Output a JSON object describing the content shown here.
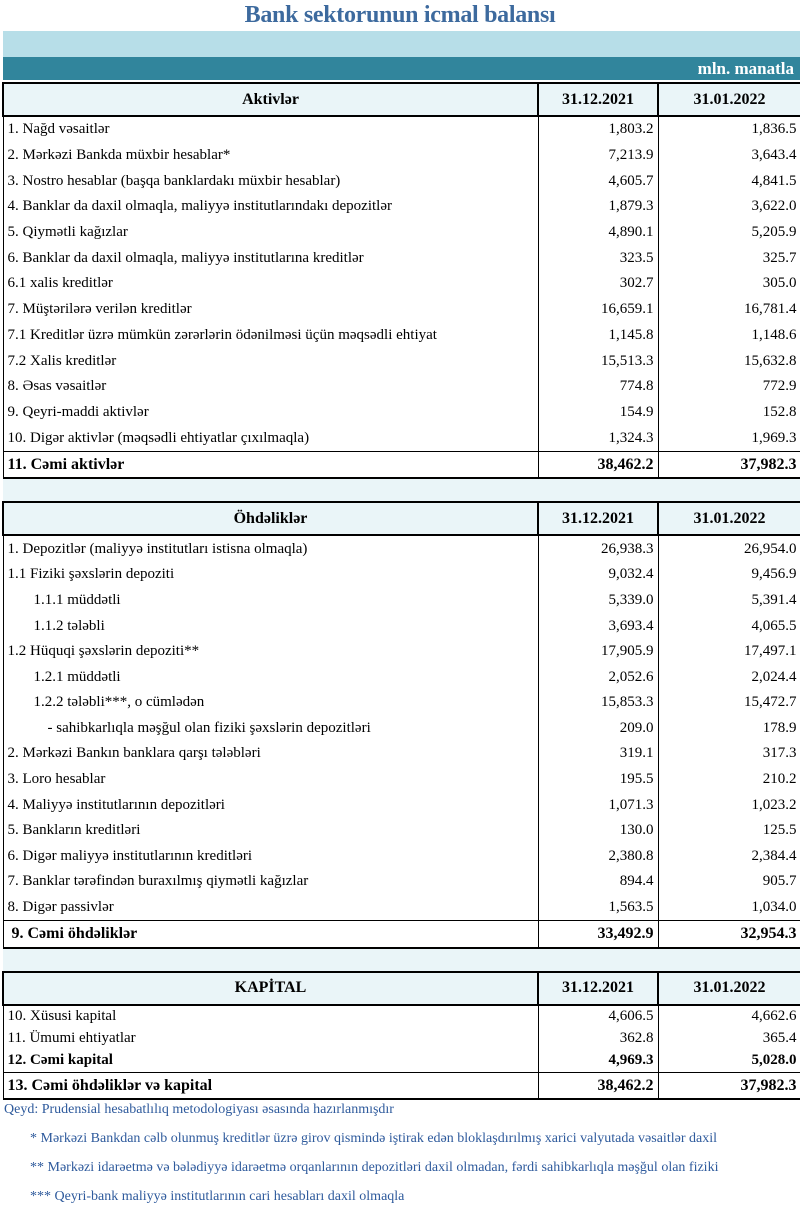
{
  "title": "Bank sektorunun icmal balansı",
  "unit": "mln. manatla",
  "sections": [
    {
      "header": "Aktivlər",
      "cols": [
        "31.12.2021",
        "31.01.2022"
      ],
      "rows": [
        [
          "1. Nağd vəsaitlər",
          "1,803.2",
          "1,836.5"
        ],
        [
          "2. Mərkəzi Bankda müxbir hesablar*",
          "7,213.9",
          "3,643.4"
        ],
        [
          "3. Nostro hesablar (başqa banklardakı müxbir hesablar)",
          "4,605.7",
          "4,841.5"
        ],
        [
          "4. Banklar da daxil olmaqla, maliyyə institutlarındakı depozitlər",
          "1,879.3",
          "3,622.0"
        ],
        [
          "5. Qiymətli kağızlar",
          "4,890.1",
          "5,205.9"
        ],
        [
          "6. Banklar da daxil olmaqla, maliyyə institutlarına kreditlər",
          "323.5",
          "325.7"
        ],
        [
          "6.1 xalis kreditlər",
          "302.7",
          "305.0"
        ],
        [
          "7. Müştərilərə verilən kreditlər",
          "16,659.1",
          "16,781.4"
        ],
        [
          "7.1 Kreditlər üzrə mümkün zərərlərin ödənilməsi üçün məqsədli ehtiyat",
          "1,145.8",
          "1,148.6"
        ],
        [
          "7.2 Xalis kreditlər",
          "15,513.3",
          "15,632.8"
        ],
        [
          "8.  Əsas vəsaitlər",
          "774.8",
          "772.9"
        ],
        [
          "9. Qeyri-maddi aktivlər",
          "154.9",
          "152.8"
        ],
        [
          "10. Digər aktivlər (məqsədli ehtiyatlar çıxılmaqla)",
          "1,324.3",
          "1,969.3"
        ]
      ],
      "total": [
        "11. Cəmi aktivlər",
        "38,462.2",
        "37,982.3"
      ]
    },
    {
      "header": "Öhdəliklər",
      "cols": [
        "31.12.2021",
        "31.01.2022"
      ],
      "rows": [
        [
          "1. Depozitlər (maliyyə institutları istisna olmaqla)",
          "26,938.3",
          "26,954.0"
        ],
        [
          "1.1 Fiziki şəxslərin depoziti",
          "9,032.4",
          "9,456.9"
        ],
        [
          "1.1.1 müddətli",
          "5,339.0",
          "5,391.4"
        ],
        [
          "1.1.2 tələbli",
          "3,693.4",
          "4,065.5"
        ],
        [
          "1.2 Hüquqi şəxslərin depoziti**",
          "17,905.9",
          "17,497.1"
        ],
        [
          "1.2.1 müddətli",
          "2,052.6",
          "2,024.4"
        ],
        [
          "1.2.2 tələbli***, o cümlədən",
          "15,853.3",
          "15,472.7"
        ],
        [
          "- sahibkarlıqla məşğul olan fiziki şəxslərin depozitləri",
          "209.0",
          "178.9"
        ],
        [
          "2. Mərkəzi Bankın banklara qarşı tələbləri",
          "319.1",
          "317.3"
        ],
        [
          "3. Loro hesablar",
          "195.5",
          "210.2"
        ],
        [
          "4. Maliyyə institutlarının  depozitləri",
          "1,071.3",
          "1,023.2"
        ],
        [
          "5. Bankların kreditləri",
          "130.0",
          "125.5"
        ],
        [
          "6. Digər maliyyə institutlarının kreditləri",
          "2,380.8",
          "2,384.4"
        ],
        [
          "7. Banklar tərəfindən buraxılmış qiymətli kağızlar",
          "894.4",
          "905.7"
        ],
        [
          "8. Digər passivlər",
          "1,563.5",
          "1,034.0"
        ]
      ],
      "total": [
        "9. Cəmi öhdəliklər",
        "33,492.9",
        "32,954.3"
      ]
    },
    {
      "header": "KAPİTAL",
      "cols": [
        "31.12.2021",
        "31.01.2022"
      ],
      "rows": [
        [
          "10. Xüsusi kapital",
          "4,606.5",
          "4,662.6"
        ],
        [
          "11. Ümumi ehtiyatlar",
          "362.8",
          "365.4"
        ],
        [
          "12. Cəmi kapital",
          "4,969.3",
          "5,028.0"
        ]
      ],
      "total": [
        "13. Cəmi öhdəliklər və kapital",
        "38,462.2",
        "37,982.3"
      ]
    }
  ],
  "notes": [
    "Qeyd: Prudensial hesabatlılıq metodologiyası əsasında hazırlanmışdır",
    "* Mərkəzi Bankdan cəlb olunmuş kreditlər üzrə girov qismində iştirak edən bloklaşdırılmış xarici valyutada vəsaitlər daxil",
    "** Mərkəzi idarəetmə və bələdiyyə idarəetmə orqanlarının depozitləri daxil olmadan, fərdi sahibkarlıqla məşğul olan fiziki",
    "*** Qeyri-bank maliyyə institutlarının cari hesabları daxil olmaqla"
  ]
}
